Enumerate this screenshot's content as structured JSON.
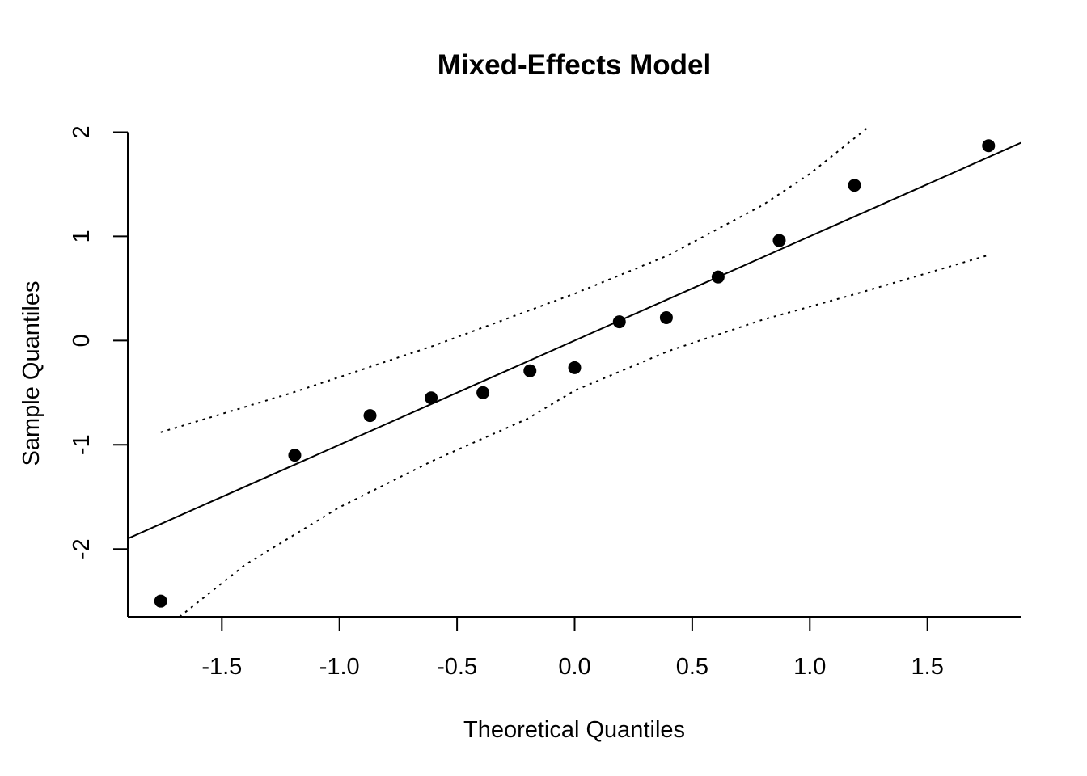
{
  "chart_data": {
    "type": "scatter",
    "title": "Mixed-Effects Model",
    "xlabel": "Theoretical Quantiles",
    "ylabel": "Sample Quantiles",
    "xlim": [
      -1.9,
      1.9
    ],
    "ylim": [
      -2.65,
      2.05
    ],
    "x_ticks": [
      -1.5,
      -1.0,
      -0.5,
      0.0,
      0.5,
      1.0,
      1.5
    ],
    "x_tick_labels": [
      "-1.5",
      "-1.0",
      "-0.5",
      "0.0",
      "0.5",
      "1.0",
      "1.5"
    ],
    "y_ticks": [
      -2,
      -1,
      0,
      1,
      2
    ],
    "y_tick_labels": [
      "-2",
      "-1",
      "0",
      "1",
      "2"
    ],
    "points": [
      {
        "x": -1.76,
        "y": -2.5
      },
      {
        "x": -1.19,
        "y": -1.1
      },
      {
        "x": -0.87,
        "y": -0.72
      },
      {
        "x": -0.61,
        "y": -0.55
      },
      {
        "x": -0.39,
        "y": -0.5
      },
      {
        "x": -0.19,
        "y": -0.29
      },
      {
        "x": 0.0,
        "y": -0.26
      },
      {
        "x": 0.19,
        "y": 0.18
      },
      {
        "x": 0.39,
        "y": 0.22
      },
      {
        "x": 0.61,
        "y": 0.61
      },
      {
        "x": 0.87,
        "y": 0.96
      },
      {
        "x": 1.19,
        "y": 1.49
      },
      {
        "x": 1.76,
        "y": 1.87
      }
    ],
    "reference_line": {
      "intercept": 0.0,
      "slope": 1.0
    },
    "upper_band": [
      {
        "x": -1.76,
        "y": -0.88
      },
      {
        "x": -1.2,
        "y": -0.5
      },
      {
        "x": -0.6,
        "y": -0.05
      },
      {
        "x": 0.0,
        "y": 0.45
      },
      {
        "x": 0.4,
        "y": 0.82
      },
      {
        "x": 0.8,
        "y": 1.3
      },
      {
        "x": 1.0,
        "y": 1.6
      },
      {
        "x": 1.25,
        "y": 2.05
      }
    ],
    "lower_band": [
      {
        "x": -1.68,
        "y": -2.65
      },
      {
        "x": -1.4,
        "y": -2.15
      },
      {
        "x": -1.0,
        "y": -1.6
      },
      {
        "x": -0.6,
        "y": -1.15
      },
      {
        "x": -0.2,
        "y": -0.75
      },
      {
        "x": 0.0,
        "y": -0.48
      },
      {
        "x": 0.4,
        "y": -0.1
      },
      {
        "x": 0.8,
        "y": 0.2
      },
      {
        "x": 1.2,
        "y": 0.45
      },
      {
        "x": 1.76,
        "y": 0.82
      }
    ]
  }
}
